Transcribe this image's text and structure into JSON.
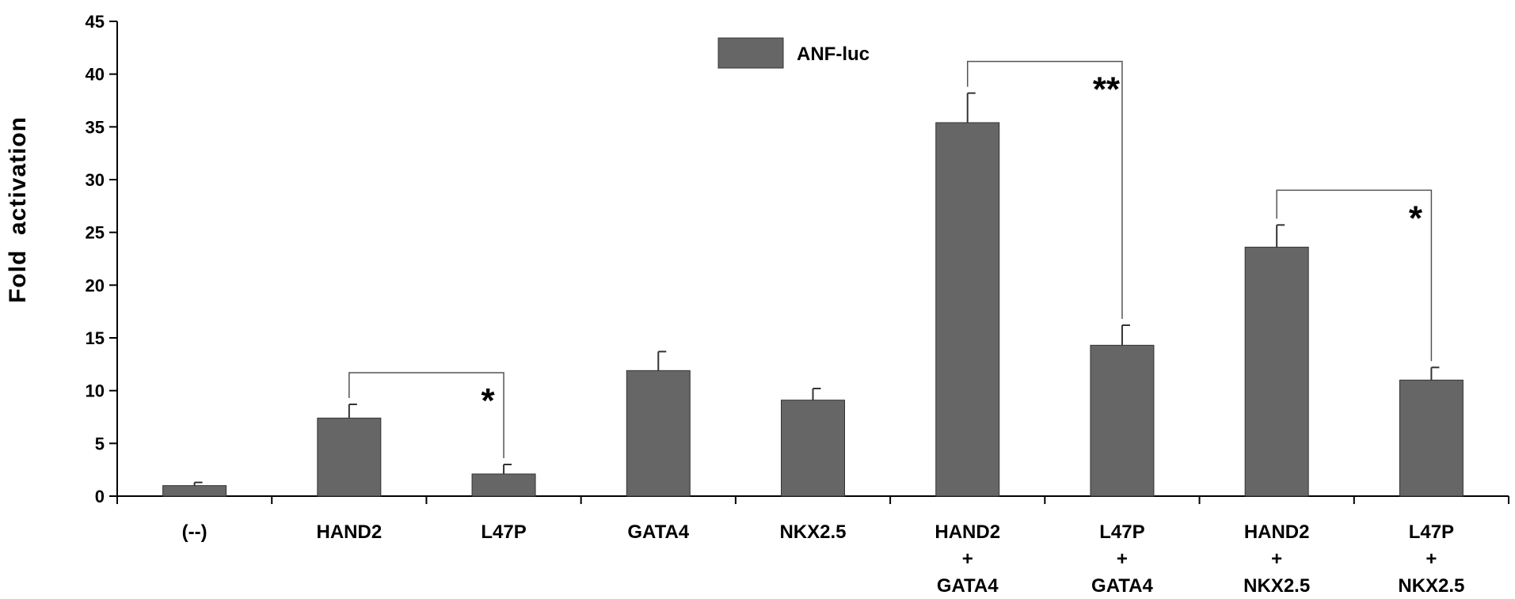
{
  "chart_data": {
    "type": "bar",
    "ylabel": "Fold  activation",
    "xlabel": "",
    "ylim": [
      0,
      45
    ],
    "yticks": [
      0,
      5,
      10,
      15,
      20,
      25,
      30,
      35,
      40,
      45
    ],
    "grid": false,
    "legend_position": "top-center",
    "bar_color": "#666666",
    "categories": [
      [
        "(--)"
      ],
      [
        "HAND2"
      ],
      [
        "L47P"
      ],
      [
        "GATA4"
      ],
      [
        "NKX2.5"
      ],
      [
        "HAND2",
        "+",
        "GATA4"
      ],
      [
        "L47P",
        "+",
        "GATA4"
      ],
      [
        "HAND2",
        "+",
        "NKX2.5"
      ],
      [
        "L47P",
        "+",
        "NKX2.5"
      ]
    ],
    "series": [
      {
        "name": "ANF-luc",
        "values": [
          1.0,
          7.4,
          2.1,
          11.9,
          9.1,
          35.4,
          14.3,
          23.6,
          11.0
        ],
        "errors": [
          0.3,
          1.3,
          0.9,
          1.8,
          1.1,
          2.8,
          1.9,
          2.1,
          1.2
        ]
      }
    ],
    "annotations": [
      {
        "from": 1,
        "to": 2,
        "y": 11.7,
        "label": "*"
      },
      {
        "from": 5,
        "to": 6,
        "y": 41.2,
        "label": "**"
      },
      {
        "from": 7,
        "to": 8,
        "y": 29.0,
        "label": "*"
      }
    ]
  }
}
